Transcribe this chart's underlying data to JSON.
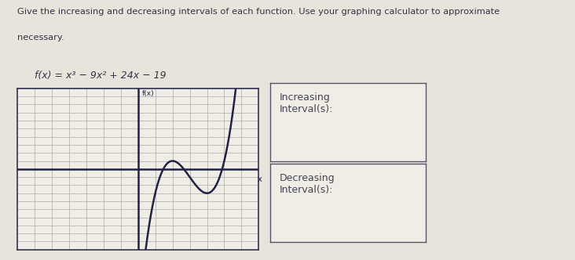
{
  "title_text": "Give the increasing and decreasing intervals of each function. Use your graphing calculator to approximate",
  "title_line2": "necessary.",
  "func_label": "f(x) = x³ − 9x² + 24x − 19",
  "increasing_label": "Increasing\nInterval(s):",
  "decreasing_label": "Decreasing\nInterval(s):",
  "page_bg": "#e8e4dc",
  "grid_bg": "#f0ede6",
  "grid_color": "#aaaaaa",
  "border_color": "#333355",
  "axis_color": "#222244",
  "curve_color": "#222244",
  "box_bg": "#f0ede6",
  "box_border": "#555566",
  "text_color": "#333344",
  "label_color": "#444455",
  "x_range": [
    -7,
    7
  ],
  "y_range": [
    -10,
    10
  ],
  "axis_label_x": "x",
  "axis_label_y": "f(x)"
}
